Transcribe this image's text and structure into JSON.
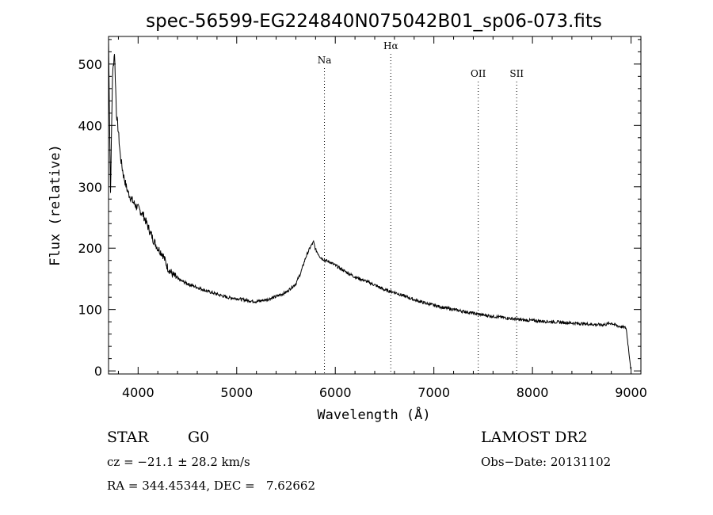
{
  "chart_data": {
    "type": "line",
    "title": "spec-56599-EG224840N075042B01_sp06-073.fits",
    "xlabel": "Wavelength (Å)",
    "ylabel": "Flux (relative)",
    "xlim": [
      3700,
      9100
    ],
    "ylim": [
      -5,
      545
    ],
    "x_ticks": [
      4000,
      5000,
      6000,
      7000,
      8000,
      9000
    ],
    "y_ticks": [
      0,
      100,
      200,
      300,
      400,
      500
    ],
    "grid": false,
    "line_color": "#000000",
    "lines": [
      {
        "label": "Na",
        "x": 5890
      },
      {
        "label": "Hα",
        "x": 6563
      },
      {
        "label": "OII",
        "x": 7450
      },
      {
        "label": "SII",
        "x": 7840
      }
    ],
    "series": [
      {
        "x": [
          3700,
          3720,
          3740,
          3760,
          3780,
          3800,
          3820,
          3850,
          3880,
          3900,
          3950,
          4000,
          4050,
          4100,
          4150,
          4200,
          4250,
          4300,
          4350,
          4400,
          4500,
          4600,
          4700,
          4800,
          4900,
          5000,
          5100,
          5200,
          5300,
          5400,
          5500,
          5600,
          5650,
          5700,
          5750,
          5780,
          5800,
          5850,
          5900,
          5950,
          6000,
          6100,
          6200,
          6300,
          6400,
          6500,
          6550,
          6600,
          6700,
          6800,
          6900,
          7000,
          7100,
          7200,
          7300,
          7400,
          7500,
          7600,
          7700,
          7800,
          7900,
          8000,
          8100,
          8200,
          8300,
          8400,
          8500,
          8600,
          8700,
          8750,
          8800,
          8850,
          8900,
          8950,
          9000
        ],
        "values": [
          540,
          290,
          480,
          520,
          420,
          390,
          350,
          320,
          300,
          290,
          275,
          265,
          255,
          235,
          215,
          200,
          190,
          168,
          157,
          150,
          142,
          136,
          130,
          125,
          120,
          118,
          115,
          113,
          116,
          121,
          128,
          142,
          160,
          185,
          203,
          210,
          198,
          185,
          180,
          177,
          172,
          162,
          153,
          147,
          140,
          132,
          130,
          128,
          122,
          116,
          111,
          107,
          103,
          100,
          97,
          94,
          91,
          89,
          87,
          85,
          83,
          82,
          81,
          80,
          79,
          78,
          77,
          76,
          75,
          76,
          78,
          74,
          72,
          70,
          0
        ]
      }
    ]
  },
  "footer": {
    "object_class": "STAR",
    "subclass": "G0",
    "survey": "LAMOST DR2",
    "cz": "cz = −21.1 ± 28.2 km/s",
    "obs_date": "Obs−Date: 20131102",
    "coords": "RA = 344.45344, DEC =   7.62662"
  }
}
